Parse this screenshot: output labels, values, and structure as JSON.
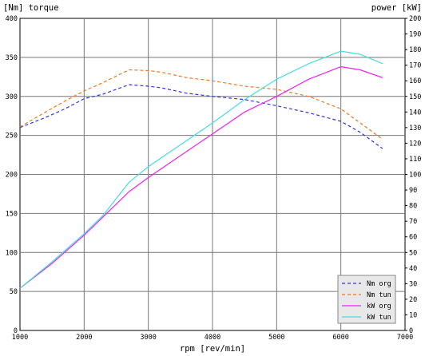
{
  "chart_data": {
    "type": "line",
    "title_left": "[Nm] torque",
    "title_right": "power [kW]",
    "xlabel": "rpm [rev/min]",
    "xlim": [
      1000,
      7000
    ],
    "ylim_left": [
      0,
      400
    ],
    "ylim_right": [
      0,
      200
    ],
    "x_ticks": [
      1000,
      2000,
      3000,
      4000,
      5000,
      6000,
      7000
    ],
    "y_left_ticks": [
      0,
      50,
      100,
      150,
      200,
      250,
      300,
      350,
      400
    ],
    "y_right_ticks": [
      0,
      10,
      20,
      30,
      40,
      50,
      60,
      70,
      80,
      90,
      100,
      110,
      120,
      130,
      140,
      150,
      160,
      170,
      180,
      190,
      200
    ],
    "grid": true,
    "legend_position": "bottom-right",
    "series": [
      {
        "name": "Nm org",
        "axis": "left",
        "color": "#3333dd",
        "dash": "dashed",
        "points": [
          [
            1000,
            260
          ],
          [
            1400,
            273
          ],
          [
            1700,
            284
          ],
          [
            2000,
            297
          ],
          [
            2300,
            303
          ],
          [
            2600,
            312
          ],
          [
            2700,
            315
          ],
          [
            3000,
            313
          ],
          [
            3200,
            311
          ],
          [
            3600,
            304
          ],
          [
            4000,
            300
          ],
          [
            4500,
            296
          ],
          [
            5000,
            288
          ],
          [
            5500,
            279
          ],
          [
            6000,
            268
          ],
          [
            6300,
            254
          ],
          [
            6650,
            233
          ]
        ]
      },
      {
        "name": "Nm tun",
        "axis": "left",
        "color": "#ee7722",
        "dash": "dashed",
        "points": [
          [
            1000,
            261
          ],
          [
            1400,
            280
          ],
          [
            1700,
            294
          ],
          [
            2000,
            307
          ],
          [
            2300,
            318
          ],
          [
            2600,
            330
          ],
          [
            2700,
            334
          ],
          [
            3000,
            333
          ],
          [
            3200,
            331
          ],
          [
            3600,
            324
          ],
          [
            4000,
            320
          ],
          [
            4500,
            313
          ],
          [
            5000,
            309
          ],
          [
            5500,
            300
          ],
          [
            6000,
            284
          ],
          [
            6300,
            266
          ],
          [
            6650,
            245
          ]
        ]
      },
      {
        "name": "kW org",
        "axis": "right",
        "color": "#ee22ee",
        "dash": "solid",
        "points": [
          [
            1000,
            27
          ],
          [
            1500,
            43
          ],
          [
            2000,
            61
          ],
          [
            2300,
            73
          ],
          [
            2700,
            89
          ],
          [
            3000,
            98
          ],
          [
            3500,
            112
          ],
          [
            4000,
            126
          ],
          [
            4500,
            140
          ],
          [
            5000,
            150
          ],
          [
            5500,
            161
          ],
          [
            6000,
            169
          ],
          [
            6300,
            167
          ],
          [
            6650,
            162
          ]
        ]
      },
      {
        "name": "kW tun",
        "axis": "right",
        "color": "#44dddd",
        "dash": "solid",
        "points": [
          [
            1000,
            27
          ],
          [
            1500,
            44
          ],
          [
            2000,
            62
          ],
          [
            2300,
            74
          ],
          [
            2700,
            95
          ],
          [
            3000,
            105
          ],
          [
            3500,
            119
          ],
          [
            4000,
            133
          ],
          [
            4500,
            148
          ],
          [
            5000,
            161
          ],
          [
            5500,
            171
          ],
          [
            6000,
            179
          ],
          [
            6300,
            177
          ],
          [
            6650,
            171
          ]
        ]
      }
    ]
  }
}
